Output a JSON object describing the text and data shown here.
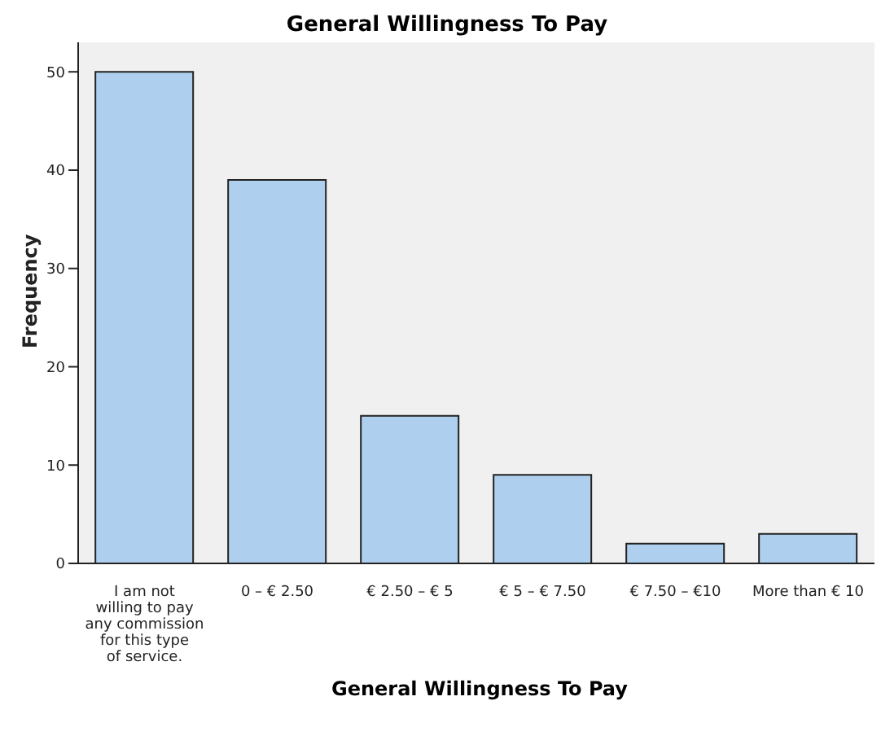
{
  "chart_data": {
    "type": "bar",
    "title": "General Willingness To Pay",
    "xlabel": "General Willingness To Pay",
    "ylabel": "Frequency",
    "categories": [
      "I am not willing to pay any commission for this type of service.",
      "0 – € 2.50",
      "€ 2.50 – € 5",
      "€ 5 – € 7.50",
      "€ 7.50 – €10",
      "More than € 10"
    ],
    "values": [
      50,
      39,
      15,
      9,
      2,
      3
    ],
    "color": "#aed0ee",
    "ylim": [
      0,
      53
    ],
    "yticks": [
      0,
      10,
      20,
      30,
      40,
      50
    ],
    "grid": false,
    "legend": false
  }
}
